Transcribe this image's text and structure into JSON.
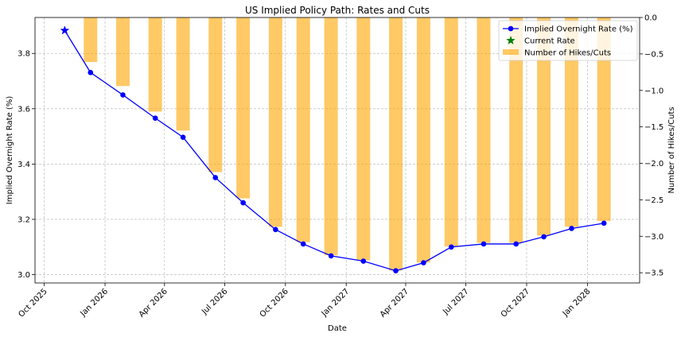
{
  "chart_data": {
    "type": "line+bar",
    "title": "US Implied Policy Path: Rates and Cuts",
    "xlabel": "Date",
    "ylabel_left": "Implied Overnight Rate (%)",
    "ylabel_right": "Number of Hikes/Cuts",
    "ylim_left": [
      2.97,
      3.93
    ],
    "ylim_right": [
      -3.64,
      0.0
    ],
    "xlim": [
      "2025-09-17",
      "2028-03-20"
    ],
    "grid": true,
    "legend_position": "top-right",
    "x_tick_labels": [
      {
        "date": "2025-10-01",
        "label": "Oct 2025"
      },
      {
        "date": "2026-01-01",
        "label": "Jan 2026"
      },
      {
        "date": "2026-04-01",
        "label": "Apr 2026"
      },
      {
        "date": "2026-07-01",
        "label": "Jul 2026"
      },
      {
        "date": "2026-10-01",
        "label": "Oct 2026"
      },
      {
        "date": "2027-01-01",
        "label": "Jan 2027"
      },
      {
        "date": "2027-04-01",
        "label": "Apr 2027"
      },
      {
        "date": "2027-07-01",
        "label": "Jul 2027"
      },
      {
        "date": "2027-10-01",
        "label": "Oct 2027"
      },
      {
        "date": "2028-01-01",
        "label": "Jan 2028"
      }
    ],
    "y_left_ticks": [
      {
        "value": 3.0,
        "label": "3.0"
      },
      {
        "value": 3.2,
        "label": "3.2"
      },
      {
        "value": 3.4,
        "label": "3.4"
      },
      {
        "value": 3.6,
        "label": "3.6"
      },
      {
        "value": 3.8,
        "label": "3.8"
      }
    ],
    "y_right_ticks": [
      {
        "value": 0.0,
        "label": "0.0"
      },
      {
        "value": -0.5,
        "label": "−0.5"
      },
      {
        "value": -1.0,
        "label": "−1.0"
      },
      {
        "value": -1.5,
        "label": "−1.5"
      },
      {
        "value": -2.0,
        "label": "−2.0"
      },
      {
        "value": -2.5,
        "label": "−2.5"
      },
      {
        "value": -3.0,
        "label": "−3.0"
      },
      {
        "value": -3.5,
        "label": "−3.5"
      }
    ],
    "series": [
      {
        "name": "Implied Overnight Rate (%)",
        "type": "line",
        "axis": "left",
        "color": "#0000ff",
        "x": [
          "2025-11-01",
          "2025-12-10",
          "2026-01-28",
          "2026-03-18",
          "2026-04-29",
          "2026-06-17",
          "2026-07-29",
          "2026-09-16",
          "2026-10-28",
          "2026-12-09",
          "2027-01-27",
          "2027-03-17",
          "2027-04-28",
          "2027-06-09",
          "2027-07-28",
          "2027-09-15",
          "2027-10-27",
          "2027-12-08",
          "2028-01-26"
        ],
        "y": [
          3.883,
          3.731,
          3.65,
          3.566,
          3.497,
          3.351,
          3.26,
          3.163,
          3.111,
          3.068,
          3.049,
          3.014,
          3.043,
          3.1,
          3.111,
          3.111,
          3.137,
          3.167,
          3.186
        ]
      },
      {
        "name": "Current Rate",
        "type": "scatter",
        "axis": "left",
        "marker": "star",
        "color": "#008000",
        "x": [
          "2025-11-01"
        ],
        "y": [
          3.883
        ]
      },
      {
        "name": "Number of Hikes/Cuts",
        "type": "bar",
        "axis": "right",
        "color": "#ffa500",
        "opacity": 0.6,
        "x": [
          "2025-12-10",
          "2026-01-28",
          "2026-03-18",
          "2026-04-29",
          "2026-06-17",
          "2026-07-29",
          "2026-09-16",
          "2026-10-28",
          "2026-12-09",
          "2027-01-27",
          "2027-03-17",
          "2027-04-28",
          "2027-06-09",
          "2027-07-28",
          "2027-09-15",
          "2027-10-27",
          "2027-12-08",
          "2028-01-26"
        ],
        "y": [
          -0.61,
          -0.94,
          -1.29,
          -1.55,
          -2.12,
          -2.48,
          -2.87,
          -3.08,
          -3.26,
          -3.33,
          -3.47,
          -3.36,
          -3.14,
          -3.09,
          -3.09,
          -2.99,
          -2.87,
          -2.79
        ]
      }
    ]
  }
}
